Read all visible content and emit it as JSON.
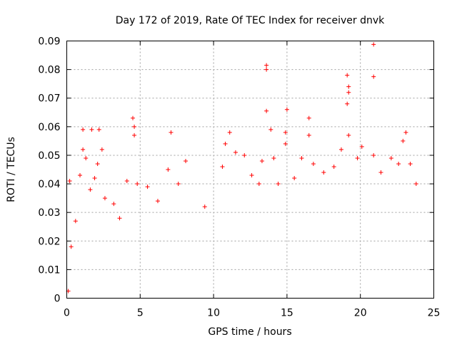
{
  "chart_data": {
    "type": "scatter",
    "title": "Day 172 of 2019, Rate Of TEC Index for receiver dnvk",
    "xlabel": "GPS time / hours",
    "ylabel": "ROTI / TECUs",
    "xlim": [
      0,
      25
    ],
    "ylim": [
      0,
      0.09
    ],
    "x_ticks": [
      "0",
      "5",
      "10",
      "15",
      "20",
      "25"
    ],
    "y_ticks": [
      "0",
      "0.01",
      "0.02",
      "0.03",
      "0.04",
      "0.05",
      "0.06",
      "0.07",
      "0.08",
      "0.09"
    ],
    "x_tick_values": [
      0,
      5,
      10,
      15,
      20,
      25
    ],
    "y_tick_values": [
      0,
      0.01,
      0.02,
      0.03,
      0.04,
      0.05,
      0.06,
      0.07,
      0.08,
      0.09
    ],
    "grid": true,
    "marker": "plus",
    "color": "#ff0000",
    "series": [
      {
        "points": [
          [
            0.1,
            0.0025
          ],
          [
            0.2,
            0.041
          ],
          [
            0.3,
            0.018
          ],
          [
            0.6,
            0.027
          ],
          [
            0.9,
            0.043
          ],
          [
            1.1,
            0.059
          ],
          [
            1.1,
            0.052
          ],
          [
            1.3,
            0.049
          ],
          [
            1.6,
            0.038
          ],
          [
            1.7,
            0.059
          ],
          [
            1.9,
            0.042
          ],
          [
            2.1,
            0.047
          ],
          [
            2.2,
            0.059
          ],
          [
            2.4,
            0.052
          ],
          [
            2.6,
            0.035
          ],
          [
            3.2,
            0.033
          ],
          [
            3.6,
            0.028
          ],
          [
            4.1,
            0.041
          ],
          [
            4.5,
            0.063
          ],
          [
            4.6,
            0.06
          ],
          [
            4.6,
            0.057
          ],
          [
            4.8,
            0.04
          ],
          [
            5.5,
            0.039
          ],
          [
            6.2,
            0.034
          ],
          [
            6.9,
            0.045
          ],
          [
            7.1,
            0.058
          ],
          [
            7.6,
            0.04
          ],
          [
            8.1,
            0.048
          ],
          [
            9.4,
            0.032
          ],
          [
            10.6,
            0.046
          ],
          [
            10.8,
            0.054
          ],
          [
            11.1,
            0.058
          ],
          [
            11.5,
            0.051
          ],
          [
            12.1,
            0.05
          ],
          [
            12.6,
            0.043
          ],
          [
            13.1,
            0.04
          ],
          [
            13.3,
            0.048
          ],
          [
            13.6,
            0.0815
          ],
          [
            13.6,
            0.08
          ],
          [
            13.6,
            0.0655
          ],
          [
            13.9,
            0.059
          ],
          [
            14.1,
            0.049
          ],
          [
            14.4,
            0.04
          ],
          [
            14.9,
            0.058
          ],
          [
            14.9,
            0.054
          ],
          [
            15.0,
            0.066
          ],
          [
            15.5,
            0.042
          ],
          [
            16.0,
            0.049
          ],
          [
            16.5,
            0.063
          ],
          [
            16.5,
            0.057
          ],
          [
            16.8,
            0.047
          ],
          [
            17.5,
            0.044
          ],
          [
            18.2,
            0.046
          ],
          [
            18.7,
            0.052
          ],
          [
            19.1,
            0.078
          ],
          [
            19.2,
            0.074
          ],
          [
            19.2,
            0.072
          ],
          [
            19.1,
            0.068
          ],
          [
            19.2,
            0.057
          ],
          [
            19.8,
            0.049
          ],
          [
            20.1,
            0.053
          ],
          [
            20.9,
            0.0888
          ],
          [
            20.9,
            0.0775
          ],
          [
            20.9,
            0.05
          ],
          [
            21.4,
            0.044
          ],
          [
            22.1,
            0.049
          ],
          [
            22.6,
            0.047
          ],
          [
            22.9,
            0.055
          ],
          [
            23.1,
            0.058
          ],
          [
            23.4,
            0.047
          ],
          [
            23.8,
            0.04
          ]
        ]
      }
    ]
  }
}
